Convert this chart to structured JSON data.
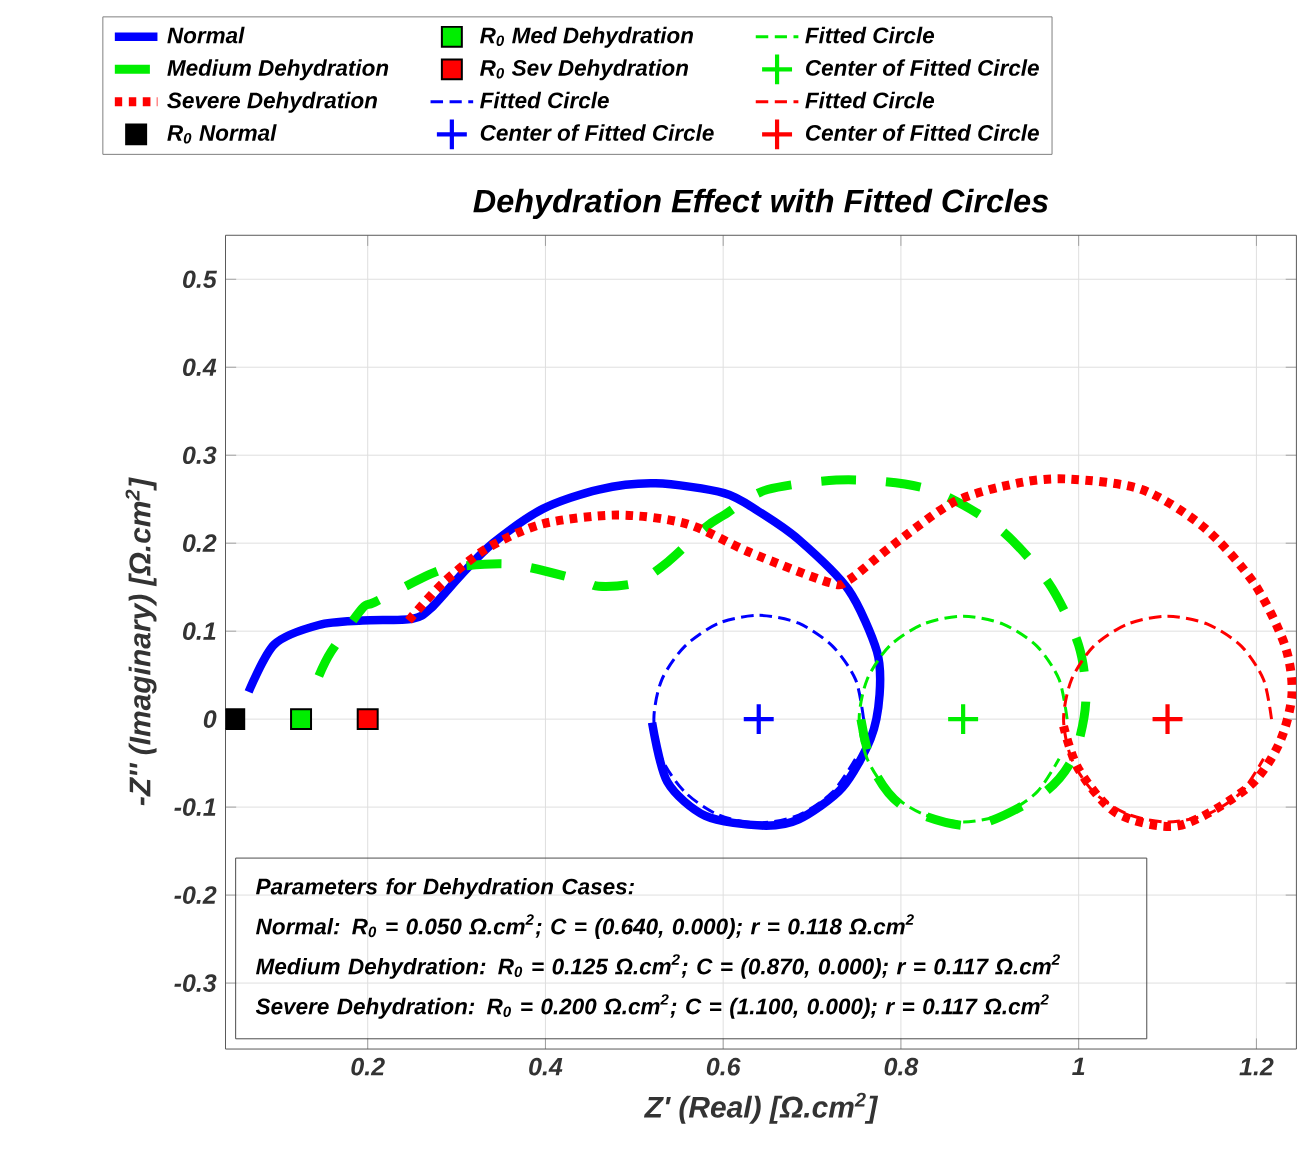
{
  "chart_data": {
    "type": "line",
    "title": "Dehydration Effect with Fitted Circles",
    "xlabel": "Z' (Real) [Ω.cm$^{2}$]",
    "ylabel": "-Z'' (Imaginary) [Ω.cm$^{2}$]",
    "xlim": [
      0.04,
      1.245
    ],
    "ylim": [
      -0.375,
      0.55
    ],
    "xticks": [
      0.2,
      0.4,
      0.6,
      0.8,
      1,
      1.2
    ],
    "yticks": [
      -0.3,
      -0.2,
      -0.1,
      0,
      0.1,
      0.2,
      0.3,
      0.4,
      0.5
    ],
    "grid": true,
    "legend": "top",
    "annotations": [
      "Parameters for Dehydration Cases:",
      "Normal: R$_{0}$ = 0.050 Ω.cm$^{2}$; C = (0.640, 0.000); r = 0.118 Ω.cm$^{2}$",
      "Medium Dehydration: R$_{0}$ = 0.125 Ω.cm$^{2}$; C = (0.870, 0.000); r = 0.117 Ω.cm$^{2}$",
      "Severe Dehydration: R$_{0}$ = 0.200 Ω.cm$^{2}$; C = (1.100, 0.000); r = 0.117 Ω.cm$^{2}$"
    ],
    "series": [
      {
        "name": "Normal",
        "line_style": "solid",
        "color": "#0000ff",
        "x": [
          0.066,
          0.095,
          0.145,
          0.194,
          0.25,
          0.271,
          0.306,
          0.341,
          0.397,
          0.46,
          0.524,
          0.601,
          0.64,
          0.685,
          0.741,
          0.773,
          0.776,
          0.766,
          0.734,
          0.685,
          0.643,
          0.58,
          0.537,
          0.52
        ],
        "values": [
          0.031,
          0.085,
          0.107,
          0.112,
          0.114,
          0.126,
          0.165,
          0.2,
          0.239,
          0.261,
          0.268,
          0.257,
          0.236,
          0.204,
          0.147,
          0.077,
          0.028,
          -0.022,
          -0.078,
          -0.114,
          -0.121,
          -0.11,
          -0.071,
          -0.004
        ]
      },
      {
        "name": "Medium Dehydration",
        "line_style": "dashed",
        "color": "#00ee00",
        "x": [
          0.145,
          0.159,
          0.194,
          0.208,
          0.271,
          0.299,
          0.362,
          0.439,
          0.46,
          0.502,
          0.538,
          0.58,
          0.601,
          0.65,
          0.741,
          0.832,
          0.909,
          0.966,
          1.0,
          1.008,
          0.994,
          0.959,
          0.881,
          0.804,
          0.769,
          0.755
        ],
        "values": [
          0.049,
          0.077,
          0.126,
          0.133,
          0.165,
          0.173,
          0.176,
          0.158,
          0.151,
          0.155,
          0.179,
          0.218,
          0.232,
          0.261,
          0.272,
          0.261,
          0.218,
          0.155,
          0.084,
          0.02,
          -0.043,
          -0.085,
          -0.121,
          -0.1,
          -0.057,
          0.0
        ]
      },
      {
        "name": "Severe Dehydration",
        "line_style": "dotted",
        "color": "#ff0000",
        "x": [
          0.246,
          0.285,
          0.334,
          0.397,
          0.481,
          0.559,
          0.629,
          0.72,
          0.741,
          0.79,
          0.86,
          0.93,
          0.987,
          1.071,
          1.141,
          1.197,
          1.232,
          1.24,
          1.225,
          1.19,
          1.113,
          1.043,
          1.0,
          0.983
        ],
        "values": [
          0.112,
          0.155,
          0.194,
          0.222,
          0.232,
          0.222,
          0.19,
          0.155,
          0.158,
          0.197,
          0.247,
          0.268,
          0.273,
          0.261,
          0.218,
          0.155,
          0.084,
          0.028,
          -0.029,
          -0.078,
          -0.121,
          -0.107,
          -0.057,
          -0.008
        ]
      },
      {
        "name": "R$_{0}$ Normal",
        "type": "scatter",
        "marker": "square",
        "color": "#000000",
        "x": [
          0.05
        ],
        "values": [
          0
        ]
      },
      {
        "name": "R$_{0}$ Med Dehydration",
        "type": "scatter",
        "marker": "square",
        "color": "#00ee00",
        "x": [
          0.125
        ],
        "values": [
          0
        ]
      },
      {
        "name": "R$_{0}$ Sev Dehydration",
        "type": "scatter",
        "marker": "square",
        "color": "#ff0000",
        "x": [
          0.2
        ],
        "values": [
          0
        ]
      },
      {
        "name": "Fitted Circle",
        "line_style": "dashed",
        "color": "#0000ff",
        "x": [
          0.758,
          0.749,
          0.723,
          0.685,
          0.64,
          0.595,
          0.557,
          0.531,
          0.522,
          0.531,
          0.557,
          0.595,
          0.64,
          0.685,
          0.723,
          0.749
        ],
        "values": [
          0,
          0.045,
          0.083,
          0.109,
          0.118,
          0.109,
          0.083,
          0.045,
          0,
          -0.045,
          -0.083,
          -0.109,
          -0.118,
          -0.109,
          -0.083,
          -0.045
        ]
      },
      {
        "name": "Center of Fitted Circle",
        "type": "scatter",
        "marker": "cross",
        "color": "#0000ff",
        "x": [
          0.64
        ],
        "values": [
          0
        ]
      },
      {
        "name": "Fitted Circle",
        "line_style": "dashed",
        "color": "#00ee00",
        "x": [
          0.987,
          0.978,
          0.953,
          0.915,
          0.87,
          0.825,
          0.787,
          0.762,
          0.753,
          0.762,
          0.787,
          0.825,
          0.87,
          0.915,
          0.953,
          0.978
        ],
        "values": [
          0,
          0.045,
          0.083,
          0.108,
          0.117,
          0.108,
          0.083,
          0.045,
          0,
          -0.045,
          -0.083,
          -0.108,
          -0.117,
          -0.108,
          -0.083,
          -0.045
        ]
      },
      {
        "name": "Center of Fitted Circle",
        "type": "scatter",
        "marker": "cross",
        "color": "#00ee00",
        "x": [
          0.87
        ],
        "values": [
          0
        ]
      },
      {
        "name": "Fitted Circle",
        "line_style": "dashed",
        "color": "#ff0000",
        "x": [
          1.217,
          1.208,
          1.183,
          1.145,
          1.1,
          1.055,
          1.017,
          0.992,
          0.983,
          0.992,
          1.017,
          1.055,
          1.1,
          1.145,
          1.183,
          1.208
        ],
        "values": [
          0,
          0.045,
          0.083,
          0.108,
          0.117,
          0.108,
          0.083,
          0.045,
          0,
          -0.045,
          -0.083,
          -0.108,
          -0.117,
          -0.108,
          -0.083,
          -0.045
        ]
      },
      {
        "name": "Center of Fitted Circle",
        "type": "scatter",
        "marker": "cross",
        "color": "#ff0000",
        "x": [
          1.1
        ],
        "values": [
          0
        ]
      }
    ]
  }
}
